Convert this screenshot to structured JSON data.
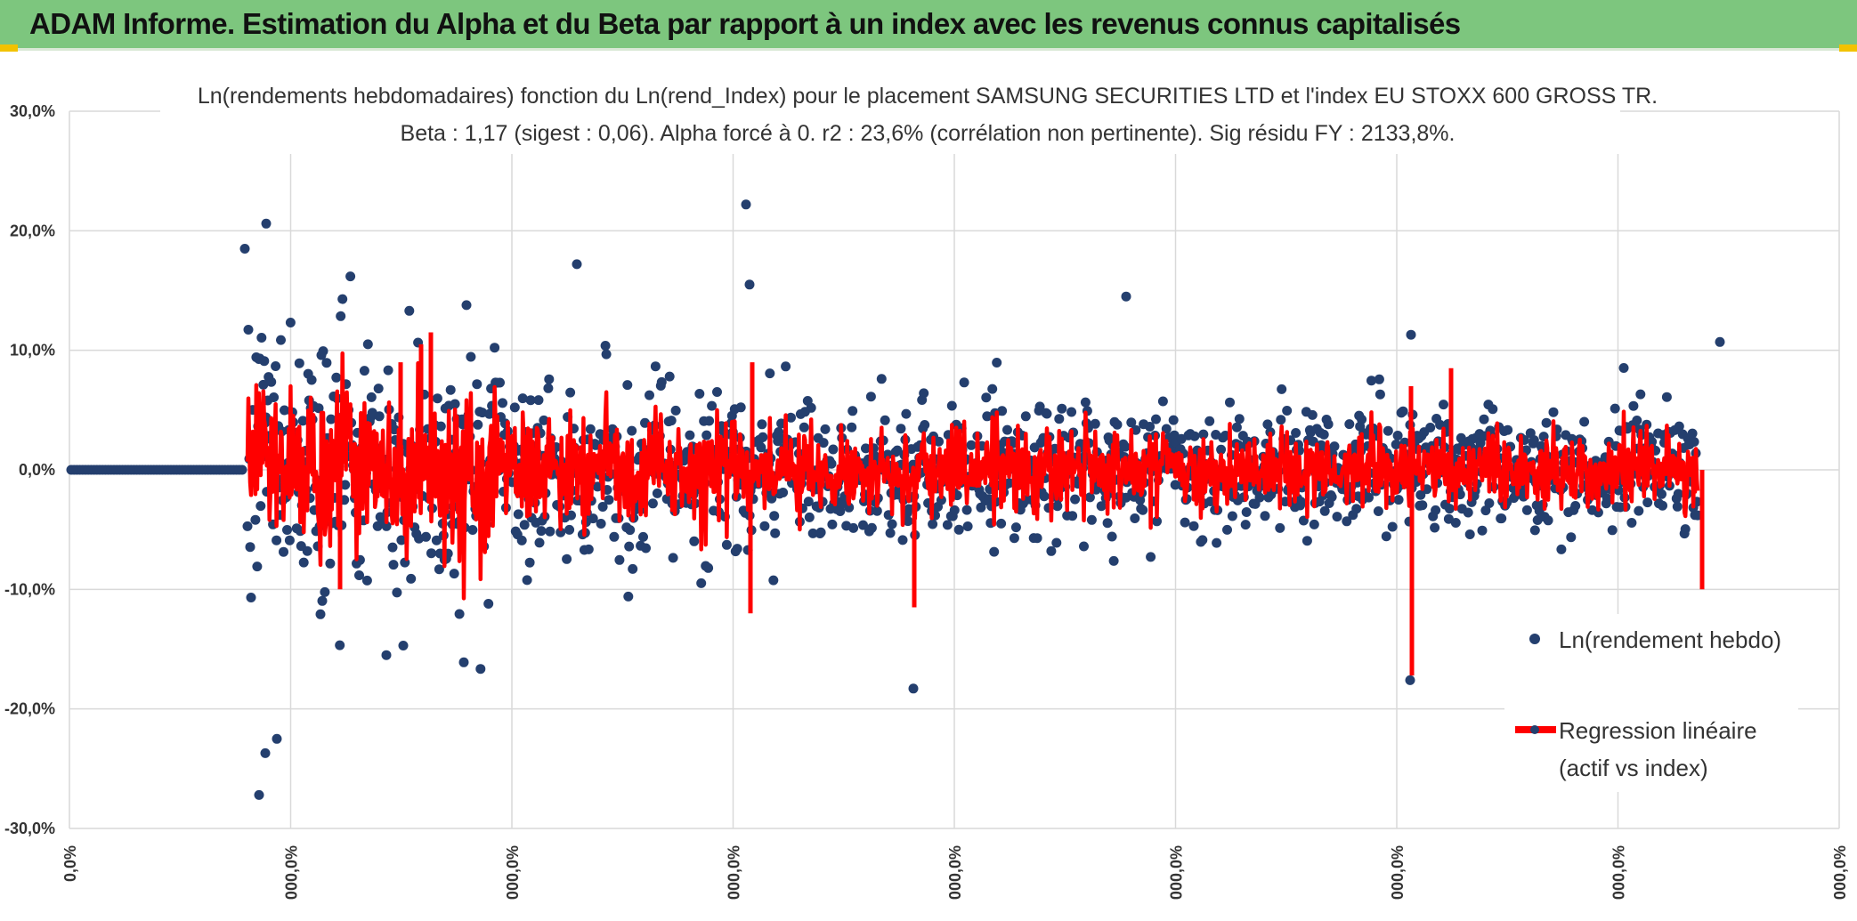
{
  "header": {
    "title": "ADAM Informe. Estimation du Alpha et du Beta par rapport à un index avec les revenus connus capitalisés"
  },
  "chart_data": {
    "type": "scatter",
    "title_line1": "Ln(rendements hebdomadaires) fonction du Ln(rend_Index) pour le placement SAMSUNG SECURITIES LTD et l'index EU STOXX 600 GROSS TR.",
    "title_line2": "Beta : 1,17 (sigest : 0,06). Alpha forcé à 0. r2 : 23,6% (corrélation non pertinente). Sig résidu FY : 2133,8%.",
    "ylim": [
      -0.3,
      0.3
    ],
    "y_ticks": [
      "30,0%",
      "20,0%",
      "10,0%",
      "0,0%",
      "-10,0%",
      "-20,0%",
      "-30,0%"
    ],
    "x_ticks": [
      "0,0%",
      "000,0%",
      "000,0%",
      "000,0%",
      "000,0%",
      "000,0%",
      "000,0%",
      "000,0%",
      "000,0%"
    ],
    "grid": true,
    "legend_position": "right",
    "series": [
      {
        "name": "Ln(rendement hebdo)",
        "kind": "scatter",
        "color": "#243f6e"
      },
      {
        "name": "Regression linéaire (actif vs index)",
        "kind": "line",
        "color": "#ff0000",
        "label_line1": "Regression linéaire",
        "label_line2": "(actif vs index)"
      }
    ],
    "statistics": {
      "beta": 1.17,
      "beta_sigest": 0.06,
      "alpha": 0,
      "r2": 0.236,
      "sig_residu_fy": 21.338
    },
    "notable_points": [
      {
        "y": 0.222
      },
      {
        "y": 0.206
      },
      {
        "y": 0.185
      },
      {
        "y": 0.172
      },
      {
        "y": 0.155
      },
      {
        "y": 0.145
      },
      {
        "y": 0.113
      },
      {
        "y": 0.107
      },
      {
        "y": -0.272
      },
      {
        "y": -0.237
      },
      {
        "y": -0.225
      },
      {
        "y": -0.183
      },
      {
        "y": -0.176
      },
      {
        "y": -0.155
      },
      {
        "y": -0.147
      }
    ]
  },
  "colors": {
    "banner": "#7dc67e",
    "accent": "#f2c200",
    "grid": "#d9d9d9",
    "scatter": "#243f6e",
    "regression": "#ff0000"
  }
}
